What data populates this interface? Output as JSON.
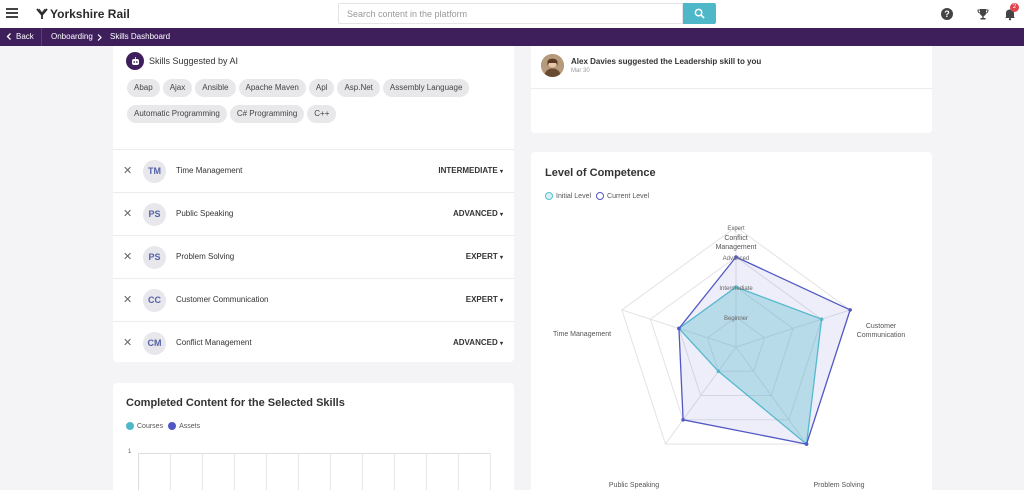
{
  "header": {
    "brand": "Yorkshire Rail",
    "search_placeholder": "Search content in the platform",
    "notification_count": "2"
  },
  "nav": {
    "back_label": "Back",
    "breadcrumbs": [
      "Onboarding",
      "Skills Dashboard"
    ]
  },
  "ai_skills": {
    "title": "Skills Suggested by AI",
    "chips": [
      "Abap",
      "Ajax",
      "Ansible",
      "Apache Maven",
      "Apl",
      "Asp.Net",
      "Assembly Language",
      "Automatic Programming",
      "C# Programming",
      "C++"
    ]
  },
  "skills": [
    {
      "initials": "TM",
      "name": "Time Management",
      "level": "INTERMEDIATE"
    },
    {
      "initials": "PS",
      "name": "Public Speaking",
      "level": "ADVANCED"
    },
    {
      "initials": "PS",
      "name": "Problem Solving",
      "level": "EXPERT"
    },
    {
      "initials": "CC",
      "name": "Customer Communication",
      "level": "EXPERT"
    },
    {
      "initials": "CM",
      "name": "Conflict Management",
      "level": "ADVANCED"
    }
  ],
  "completed": {
    "title": "Completed Content for the Selected Skills",
    "legend": [
      "Courses",
      "Assets"
    ],
    "y_tick": "1"
  },
  "activity": {
    "text": "Alex Davies suggested the Leadership skill to you",
    "date": "Mar 30"
  },
  "competence": {
    "title": "Level of Competence",
    "legend": [
      "Initial Level",
      "Current Level"
    ],
    "levels": [
      "Beginner",
      "Intermediate",
      "Advanced",
      "Expert"
    ]
  },
  "colors": {
    "brand_purple": "#3e1f5c",
    "accent_teal": "#4fb8c8",
    "initial_level": "#56c4cf",
    "current_level": "#5158c4",
    "skill_initials": "#5462a8"
  },
  "chart_data": {
    "type": "radar",
    "title": "Level of Competence",
    "axes": [
      "Conflict Management",
      "Customer Communication",
      "Problem Solving",
      "Public Speaking",
      "Time Management"
    ],
    "scale": [
      "Beginner",
      "Intermediate",
      "Advanced",
      "Expert"
    ],
    "series": [
      {
        "name": "Initial Level",
        "values": [
          2,
          3,
          4,
          1,
          2
        ]
      },
      {
        "name": "Current Level",
        "values": [
          3,
          4,
          4,
          3,
          2
        ]
      }
    ]
  }
}
